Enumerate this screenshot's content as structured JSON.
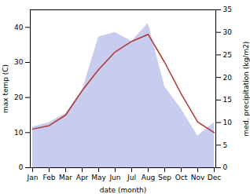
{
  "chart_data": {
    "type": "line",
    "xlabel": "date (month)",
    "ylabel": "max temp (C)",
    "y2label": "med. precipitation (kg/m2)",
    "categories": [
      "Jan",
      "Feb",
      "Mar",
      "Apr",
      "May",
      "Jun",
      "Jul",
      "Aug",
      "Sep",
      "Oct",
      "Nov",
      "Dec"
    ],
    "series": [
      {
        "type": "area",
        "axis": "y2",
        "color": "#c8ccee",
        "values": [
          9,
          10,
          12,
          17,
          29,
          30,
          28,
          32,
          18,
          13,
          7,
          10
        ]
      },
      {
        "type": "line",
        "color": "#b03535",
        "values": [
          11,
          12,
          15,
          22,
          28,
          33,
          36,
          38,
          30,
          21,
          13,
          10
        ]
      }
    ],
    "ylim": [
      0,
      45
    ],
    "yticks": [
      0,
      10,
      20,
      30,
      40
    ],
    "y2lim": [
      0,
      35
    ],
    "y2ticks": [
      0,
      5,
      10,
      15,
      20,
      25,
      30,
      35
    ],
    "grid": false
  }
}
